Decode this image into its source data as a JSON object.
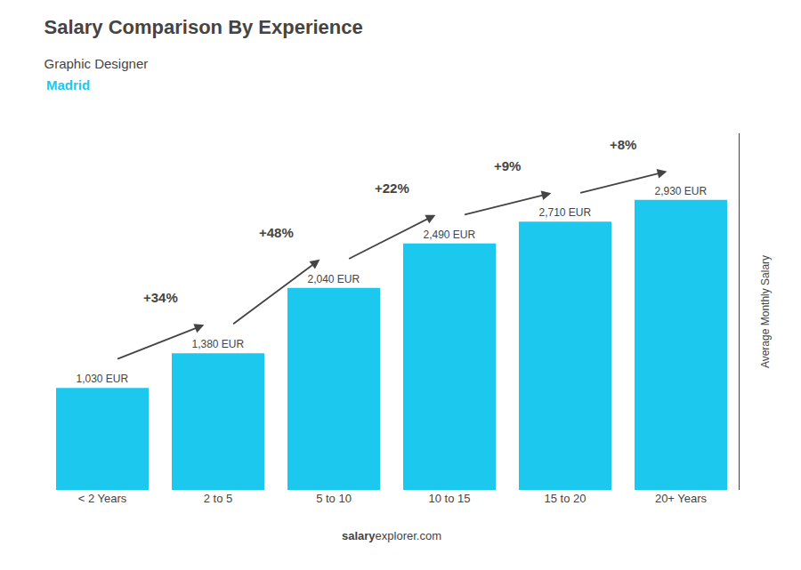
{
  "chart_data": {
    "type": "bar",
    "title": "Salary Comparison By Experience",
    "subtitle": "Graphic Designer",
    "city": "Madrid",
    "ylabel": "Average Monthly Salary",
    "categories": [
      "< 2 Years",
      "2 to 5",
      "5 to 10",
      "10 to 15",
      "15 to 20",
      "20+ Years"
    ],
    "values": [
      1030,
      1380,
      2040,
      2490,
      2710,
      2930
    ],
    "value_labels": [
      "1,030 EUR",
      "1,380 EUR",
      "2,040 EUR",
      "2,490 EUR",
      "2,710 EUR",
      "2,930 EUR"
    ],
    "data_labels": true,
    "annotations": [
      "+34%",
      "+48%",
      "+22%",
      "+9%",
      "+8%"
    ],
    "watermark": [
      "salary",
      "explorer.com"
    ],
    "color": "#1CC8EE",
    "ylim": [
      0,
      3600
    ],
    "grid": false,
    "tick_labels": "x"
  }
}
